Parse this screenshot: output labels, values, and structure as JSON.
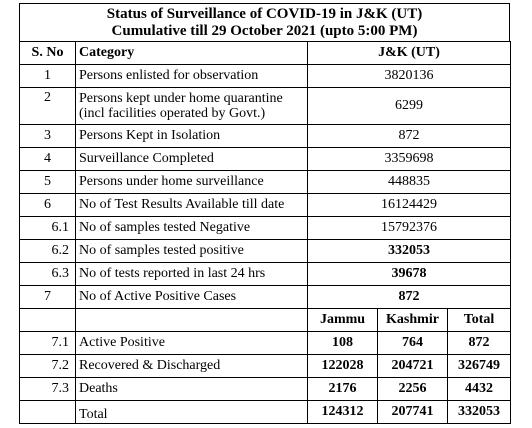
{
  "title": {
    "line1": "Status of Surveillance of COVID-19 in J&K (UT)",
    "line2": "Cumulative till 29 October 2021 (upto 5:00 PM)"
  },
  "header": {
    "sno": "S. No",
    "category": "Category",
    "value": "J&K (UT)"
  },
  "rows": [
    {
      "sno": "1",
      "category": "Persons enlisted for observation",
      "value": "3820136"
    },
    {
      "sno": "2",
      "category": "Persons kept under home quarantine (incl facilities operated by Govt.)",
      "value": "6299"
    },
    {
      "sno": "3",
      "category": "Persons Kept in Isolation",
      "value": "872"
    },
    {
      "sno": "4",
      "category": "Surveillance  Completed",
      "value": "3359698"
    },
    {
      "sno": "5",
      "category": "Persons under home surveillance",
      "value": "448835"
    },
    {
      "sno": "6",
      "category": "No of Test Results Available till date",
      "value": "16124429"
    },
    {
      "sno": "6.1",
      "category": "No of samples tested Negative",
      "value": "15792376"
    },
    {
      "sno": "6.2",
      "category": "No of samples tested positive",
      "value": "332053"
    },
    {
      "sno": "6.3",
      "category": "No of tests reported in last 24 hrs",
      "value": "39678"
    },
    {
      "sno": "7",
      "category": "No of Active Positive Cases",
      "value": "872"
    }
  ],
  "breakdown": {
    "headers": {
      "jammu": "Jammu",
      "kashmir": "Kashmir",
      "total": "Total"
    },
    "rows": [
      {
        "sno": "7.1",
        "category": "Active Positive",
        "jammu": "108",
        "kashmir": "764",
        "total": "872"
      },
      {
        "sno": "7.2",
        "category": "Recovered & Discharged",
        "jammu": "122028",
        "kashmir": "204721",
        "total": "326749"
      },
      {
        "sno": "7.3",
        "category": "Deaths",
        "jammu": "2176",
        "kashmir": "2256",
        "total": "4432"
      },
      {
        "sno": "",
        "category": "Total",
        "jammu": "124312",
        "kashmir": "207741",
        "total": "332053"
      }
    ]
  }
}
